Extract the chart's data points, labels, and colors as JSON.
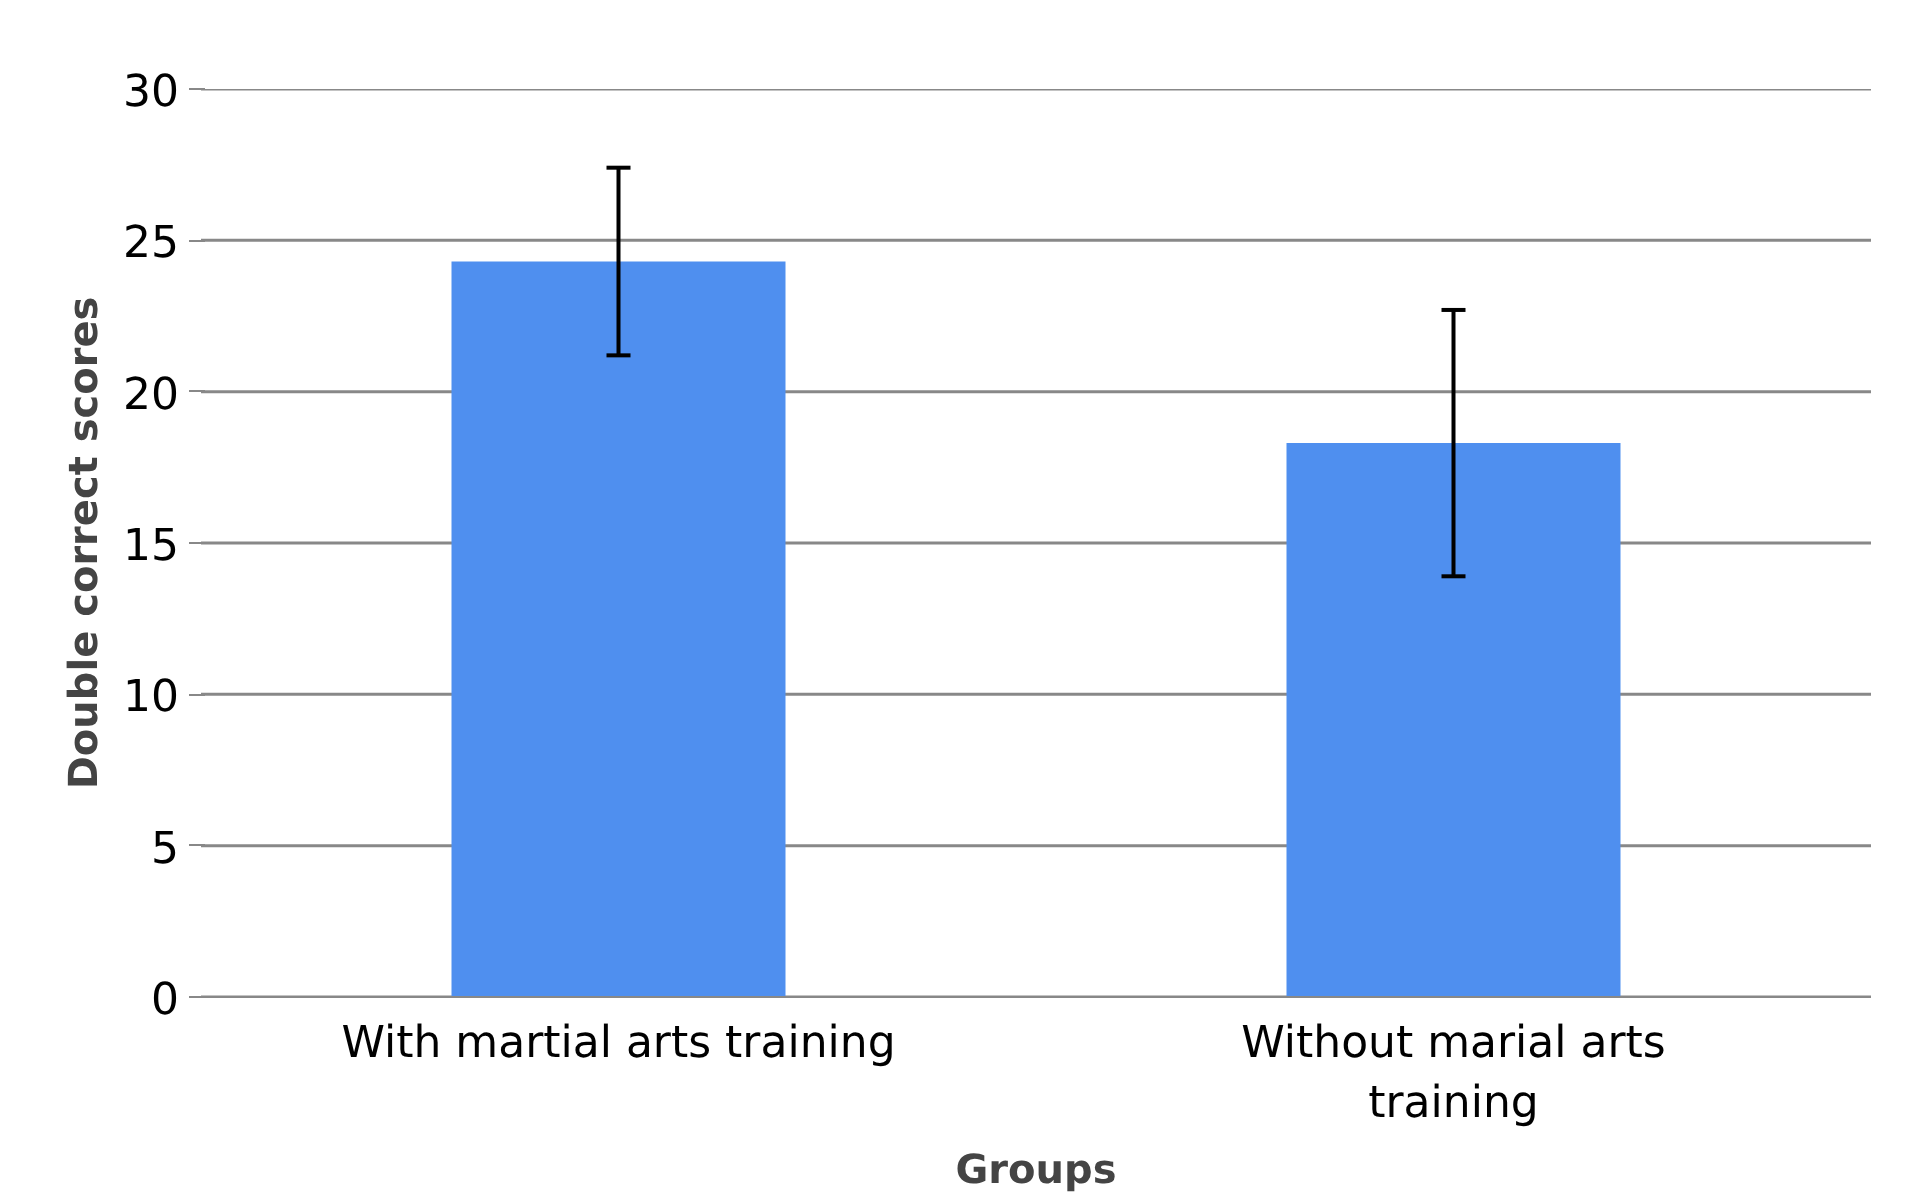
{
  "chart_data": {
    "type": "bar",
    "xlabel": "Groups",
    "ylabel": "Double correct scores",
    "categories": [
      "With martial arts training",
      "Without marial arts training"
    ],
    "values": [
      24.3,
      18.3
    ],
    "errors": [
      3.1,
      4.4
    ],
    "color": "#4f8fef",
    "ylim": [
      0,
      30
    ],
    "yticks": [
      0,
      5,
      10,
      15,
      20,
      25,
      30
    ],
    "grid": "y"
  }
}
